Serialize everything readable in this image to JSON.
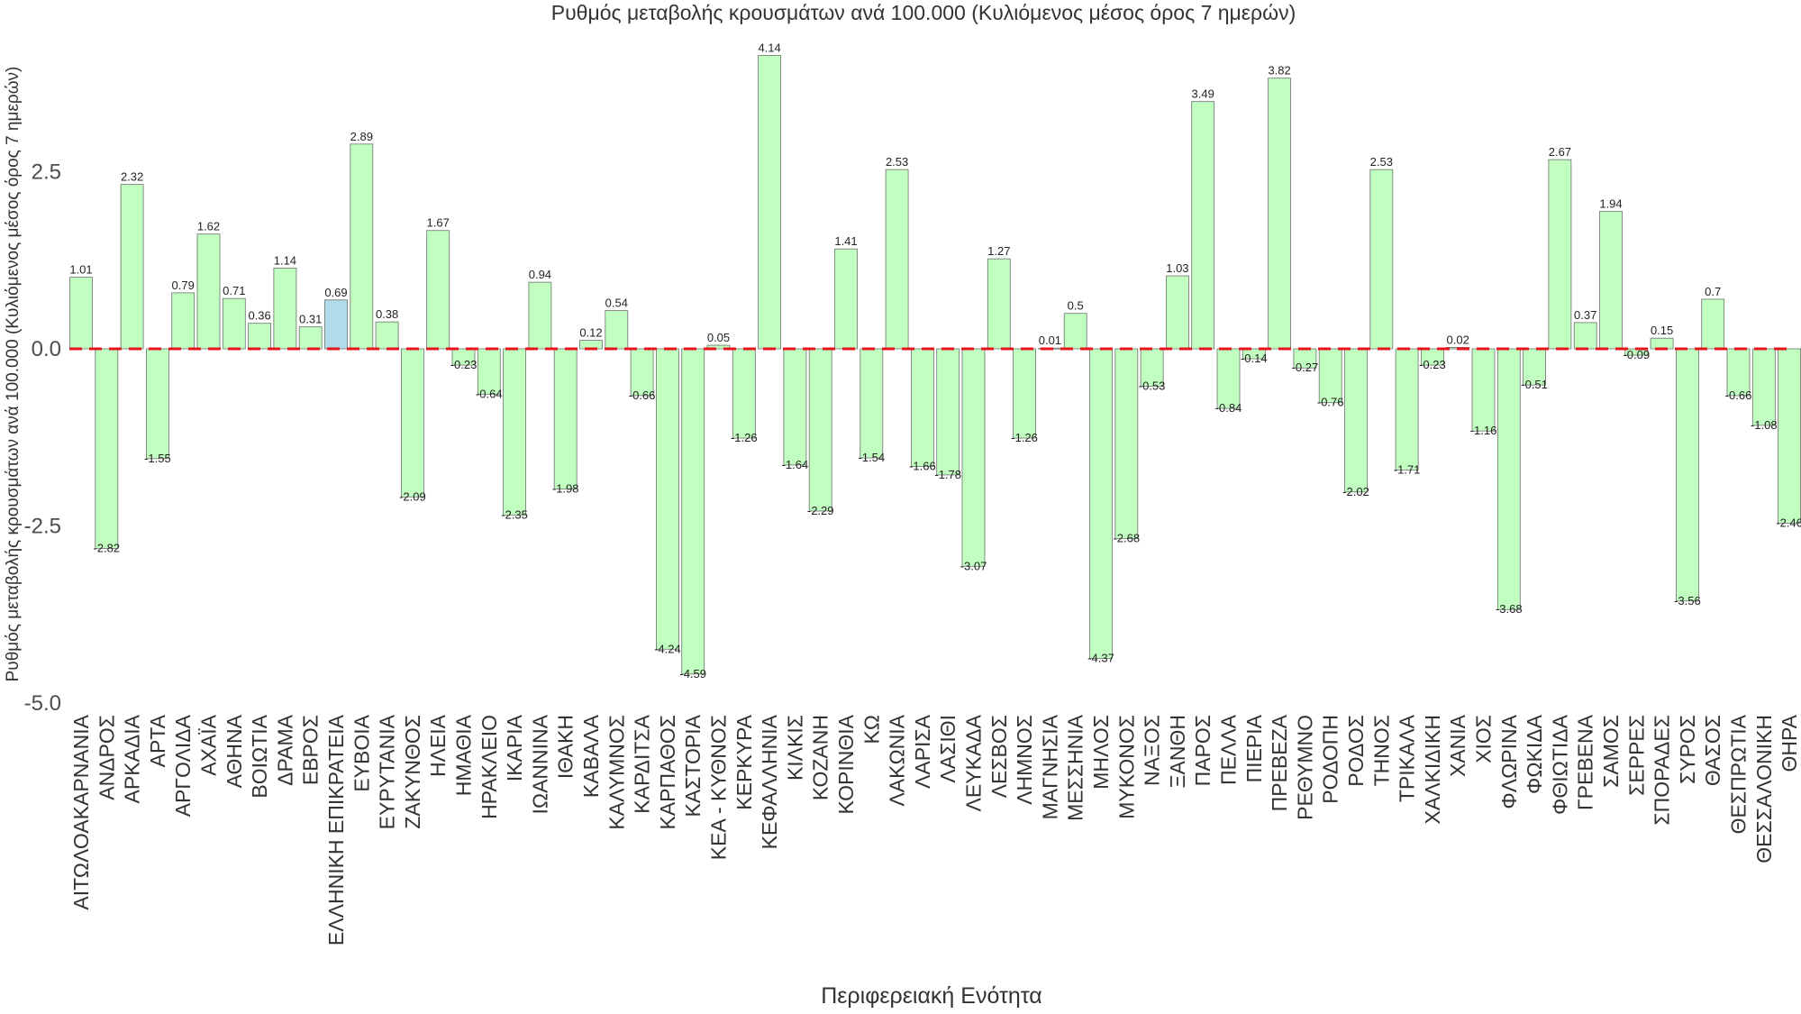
{
  "chart_data": {
    "type": "bar",
    "title": "Ρυθμός μεταβολής κρουσμάτων ανά 100.000 (Κυλιόμενος μέσος όρος 7 ημερών)",
    "xlabel": "Περιφερειακή Ενότητα",
    "ylabel": "Ρυθμός μεταβολής κρουσμάτων ανά 100.000 (Κυλιόμενος μέσος όρος 7 ημερών)",
    "ylim": [
      -5.0,
      4.4
    ],
    "yticks": [
      -5.0,
      -2.5,
      0.0,
      2.5
    ],
    "ytick_labels": [
      "-5.0",
      "-2.5",
      "0.0",
      "2.5"
    ],
    "reference_line": 0.0,
    "highlight": "ΕΛΛΗΝΙΚΗ ΕΠΙΚΡΑΤΕΙΑ",
    "colors": {
      "bar": "#c0ffc0",
      "highlight": "#b0dbe8",
      "reference": "#e8141c"
    },
    "categories": [
      "ΑΙΤΩΛΟΑΚΑΡΝΑΝΙΑ",
      "ΑΝΔΡΟΣ",
      "ΑΡΚΑΔΙΑ",
      "ΑΡΤΑ",
      "ΑΡΓΟΛΙΔΑ",
      "ΑΧΑΪΑ",
      "ΑΘΗΝΑ",
      "ΒΟΙΩΤΙΑ",
      "ΔΡΑΜΑ",
      "ΕΒΡΟΣ",
      "ΕΛΛΗΝΙΚΗ ΕΠΙΚΡΑΤΕΙΑ",
      "ΕΥΒΟΙΑ",
      "ΕΥΡΥΤΑΝΙΑ",
      "ΖΑΚΥΝΘΟΣ",
      "ΗΛΕΙΑ",
      "ΗΜΑΘΙΑ",
      "ΗΡΑΚΛΕΙΟ",
      "ΙΚΑΡΙΑ",
      "ΙΩΑΝΝΙΝΑ",
      "ΙΘΑΚΗ",
      "ΚΑΒΑΛΑ",
      "ΚΑΛΥΜΝΟΣ",
      "ΚΑΡΔΙΤΣΑ",
      "ΚΑΡΠΑΘΟΣ",
      "ΚΑΣΤΟΡΙΑ",
      "ΚΕΑ - ΚΥΘΝΟΣ",
      "ΚΕΡΚΥΡΑ",
      "ΚΕΦΑΛΛΗΝΙΑ",
      "ΚΙΛΚΙΣ",
      "ΚΟΖΑΝΗ",
      "ΚΟΡΙΝΘΙΑ",
      "ΚΩ",
      "ΛΑΚΩΝΙΑ",
      "ΛΑΡΙΣΑ",
      "ΛΑΣΙΘΙ",
      "ΛΕΥΚΑΔΑ",
      "ΛΕΣΒΟΣ",
      "ΛΗΜΝΟΣ",
      "ΜΑΓΝΗΣΙΑ",
      "ΜΕΣΣΗΝΙΑ",
      "ΜΗΛΟΣ",
      "ΜΥΚΟΝΟΣ",
      "ΝΑΞΟΣ",
      "ΞΑΝΘΗ",
      "ΠΑΡΟΣ",
      "ΠΕΛΛΑ",
      "ΠΙΕΡΙΑ",
      "ΠΡΕΒΕΖΑ",
      "ΡΕΘΥΜΝΟ",
      "ΡΟΔΟΠΗ",
      "ΡΟΔΟΣ",
      "ΤΗΝΟΣ",
      "ΤΡΙΚΑΛΑ",
      "ΧΑΛΚΙΔΙΚΗ",
      "ΧΑΝΙΑ",
      "ΧΙΟΣ",
      "ΦΛΩΡΙΝΑ",
      "ΦΩΚΙΔΑ",
      "ΦΘΙΩΤΙΔΑ",
      "ΓΡΕΒΕΝΑ",
      "ΣΑΜΟΣ",
      "ΣΕΡΡΕΣ",
      "ΣΠΟΡΑΔΕΣ",
      "ΣΥΡΟΣ",
      "ΘΑΣΟΣ",
      "ΘΕΣΠΡΩΤΙΑ",
      "ΘΕΣΣΑΛΟΝΙΚΗ",
      "ΘΗΡΑ"
    ],
    "values": [
      1.01,
      -2.82,
      2.32,
      -1.55,
      0.79,
      1.62,
      0.71,
      0.36,
      1.14,
      0.31,
      0.69,
      2.89,
      0.38,
      -2.09,
      1.67,
      -0.23,
      -0.64,
      -2.35,
      0.94,
      -1.98,
      0.12,
      0.54,
      -0.66,
      -4.24,
      -4.59,
      0.05,
      -1.26,
      4.14,
      -1.64,
      -2.29,
      1.41,
      -1.54,
      2.53,
      -1.66,
      -1.78,
      -3.07,
      1.27,
      -1.26,
      0.01,
      0.5,
      -4.37,
      -2.68,
      -0.53,
      1.03,
      3.49,
      -0.84,
      -0.14,
      3.82,
      -0.27,
      -0.76,
      -2.02,
      2.53,
      -1.71,
      -0.23,
      0.02,
      -1.16,
      -3.68,
      -0.51,
      2.67,
      0.37,
      1.94,
      -0.09,
      0.15,
      -3.56,
      0.7,
      -0.66,
      -1.08,
      -2.46
    ],
    "data_labels": [
      "1.01",
      "-2.82",
      "2.32",
      "-1.55",
      "0.79",
      "1.62",
      "0.71",
      "0.36",
      "1.14",
      "0.31",
      "0.69",
      "2.89",
      "0.38",
      "-2.09",
      "1.67",
      "-0.23",
      "-0.64",
      "-2.35",
      "0.94",
      "-1.98",
      "0.12",
      "0.54",
      "-0.66",
      "-4.24",
      "-4.59",
      "0.05",
      "-1.26",
      "4.14",
      "-1.64",
      "-2.29",
      "1.41",
      "-1.54",
      "2.53",
      "-1.66",
      "-1.78",
      "-3.07",
      "1.27",
      "-1.26",
      "0.01",
      "0.5",
      "-4.37",
      "-2.68",
      "-0.53",
      "1.03",
      "3.49",
      "-0.84",
      "-0.14",
      "3.82",
      "-0.27",
      "-0.76",
      "-2.02",
      "2.53",
      "-1.71",
      "-0.23",
      "0.02",
      "-1.16",
      "-3.68",
      "-0.51",
      "2.67",
      "0.37",
      "1.94",
      "-0.09",
      "0.15",
      "-3.56",
      "0.7",
      "-0.66",
      "-1.08",
      "-2.46"
    ]
  }
}
